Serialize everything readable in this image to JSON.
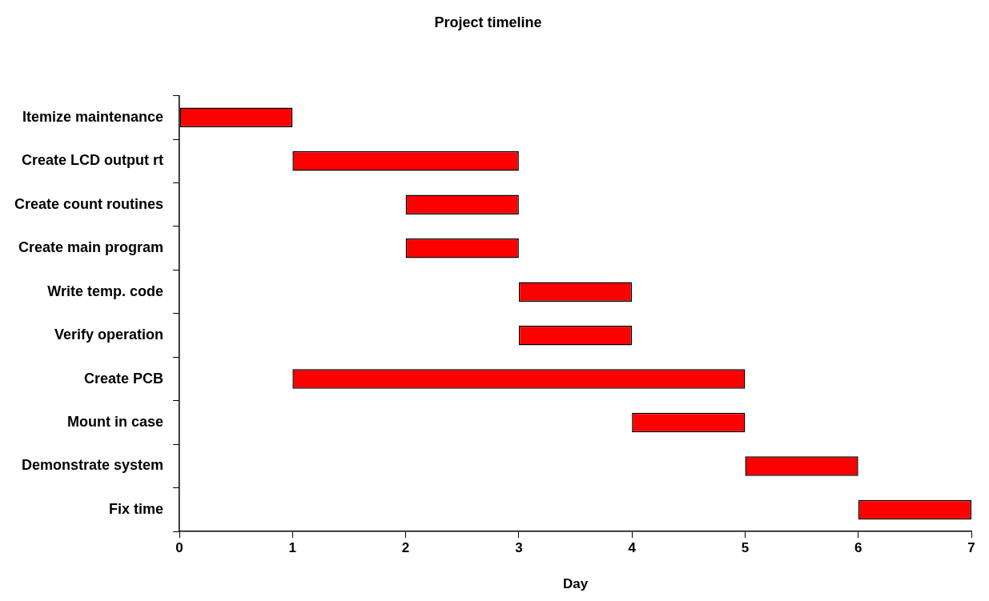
{
  "chart_data": {
    "type": "bar",
    "orientation": "horizontal",
    "title": "Project timeline",
    "xlabel": "Day",
    "categories": [
      "Itemize maintenance",
      "Create LCD output rt",
      "Create count routines",
      "Create main program",
      "Write temp. code",
      "Verify operation",
      "Create PCB",
      "Mount in case",
      "Demonstrate system",
      "Fix time"
    ],
    "base": [
      0,
      1,
      2,
      2,
      3,
      3,
      1,
      4,
      5,
      6
    ],
    "values": [
      1,
      2,
      1,
      1,
      1,
      1,
      4,
      1,
      1,
      1
    ],
    "color": "#ff0000",
    "xlim": [
      0,
      7
    ],
    "xticks": [
      0,
      1,
      2,
      3,
      4,
      5,
      6,
      7
    ],
    "grid": false,
    "legend": false
  }
}
